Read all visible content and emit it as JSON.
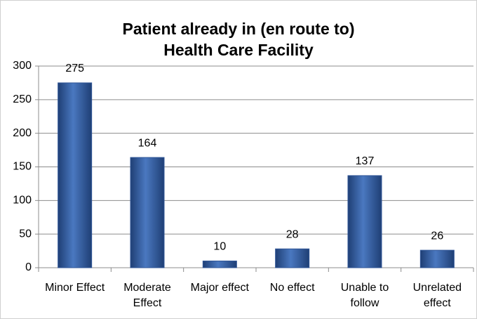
{
  "chart_data": {
    "type": "bar",
    "title": "Patient already in (en route to) Health Care Facility",
    "categories": [
      "Minor Effect",
      "Moderate Effect",
      "Major effect",
      "No effect",
      "Unable to follow",
      "Unrelated effect"
    ],
    "values": [
      275,
      164,
      10,
      28,
      137,
      26
    ],
    "color": "#2f5597",
    "ylim": [
      0,
      300
    ],
    "yticks": [
      0,
      50,
      100,
      150,
      200,
      250,
      300
    ],
    "grid": true
  }
}
